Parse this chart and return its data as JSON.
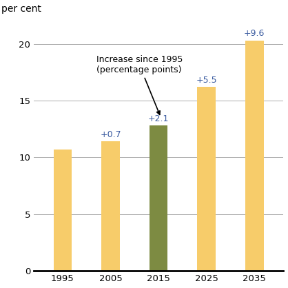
{
  "categories": [
    "1995",
    "2005",
    "2015",
    "2025",
    "2035"
  ],
  "values": [
    10.7,
    11.4,
    12.8,
    16.2,
    20.3
  ],
  "bar_colors": [
    "#F7CC6A",
    "#F7CC6A",
    "#7D8B42",
    "#F7CC6A",
    "#F7CC6A"
  ],
  "labels": [
    "",
    "+0.7",
    "+2.1",
    "+5.5",
    "+9.6"
  ],
  "ylabel": "per cent",
  "ylim": [
    0,
    22
  ],
  "yticks": [
    0,
    5,
    10,
    15,
    20
  ],
  "annotation_text": "Increase since 1995\n(percentage points)",
  "label_color": "#3A5BA0",
  "annotation_color": "#000000",
  "label_fontsize": 9,
  "axis_label_fontsize": 10,
  "tick_fontsize": 9.5,
  "background_color": "#ffffff",
  "bar_width": 0.38
}
